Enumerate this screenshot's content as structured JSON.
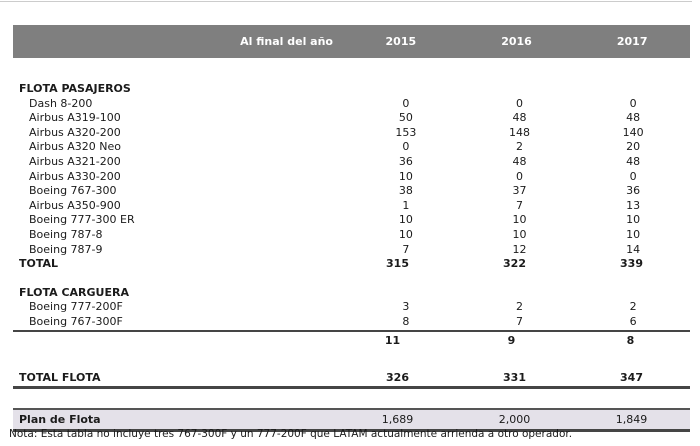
{
  "header": {
    "label": "Al final del año",
    "years": [
      "2015",
      "2016",
      "2017"
    ]
  },
  "passenger_section": {
    "title": "FLOTA PASAJEROS",
    "rows": [
      {
        "label": "Dash 8-200",
        "values": [
          "0",
          "0",
          "0"
        ]
      },
      {
        "label": "Airbus A319-100",
        "values": [
          "50",
          "48",
          "48"
        ]
      },
      {
        "label": "Airbus A320-200",
        "values": [
          "153",
          "148",
          "140"
        ]
      },
      {
        "label": "Airbus A320 Neo",
        "values": [
          "0",
          "2",
          "20"
        ]
      },
      {
        "label": "Airbus A321-200",
        "values": [
          "36",
          "48",
          "48"
        ]
      },
      {
        "label": "Airbus A330-200",
        "values": [
          "10",
          "0",
          "0"
        ]
      },
      {
        "label": "Boeing 767-300",
        "values": [
          "38",
          "37",
          "36"
        ]
      },
      {
        "label": "Airbus A350-900",
        "values": [
          "1",
          "7",
          "13"
        ]
      },
      {
        "label": "Boeing 777-300 ER",
        "values": [
          "10",
          "10",
          "10"
        ]
      },
      {
        "label": "Boeing 787-8",
        "values": [
          "10",
          "10",
          "10"
        ]
      },
      {
        "label": "Boeing 787-9",
        "values": [
          "7",
          "12",
          "14"
        ]
      }
    ],
    "total": {
      "label": "TOTAL",
      "values": [
        "315",
        "322",
        "339"
      ]
    }
  },
  "cargo_section": {
    "title": "FLOTA CARGUERA",
    "rows": [
      {
        "label": "Boeing 777-200F",
        "values": [
          "3",
          "2",
          "2"
        ]
      },
      {
        "label": "Boeing 767-300F",
        "values": [
          "8",
          "7",
          "6"
        ]
      }
    ],
    "subtotal": {
      "values": [
        "11",
        "9",
        "8"
      ]
    }
  },
  "total_fleet": {
    "label": "TOTAL FLOTA",
    "values": [
      "326",
      "331",
      "347"
    ]
  },
  "plan": {
    "label": "Plan de Flota",
    "values": [
      "1,689",
      "2,000",
      "1,849"
    ]
  },
  "note": "Nota: Esta tabla no incluye tres 767-300F y un 777-200F que LATAM actualmente arrienda a otro operador.",
  "colors": {
    "header_bg": "#7f7f7f",
    "header_text": "#ffffff",
    "plan_bg": "#e4e1e9",
    "rule": "#454545"
  }
}
